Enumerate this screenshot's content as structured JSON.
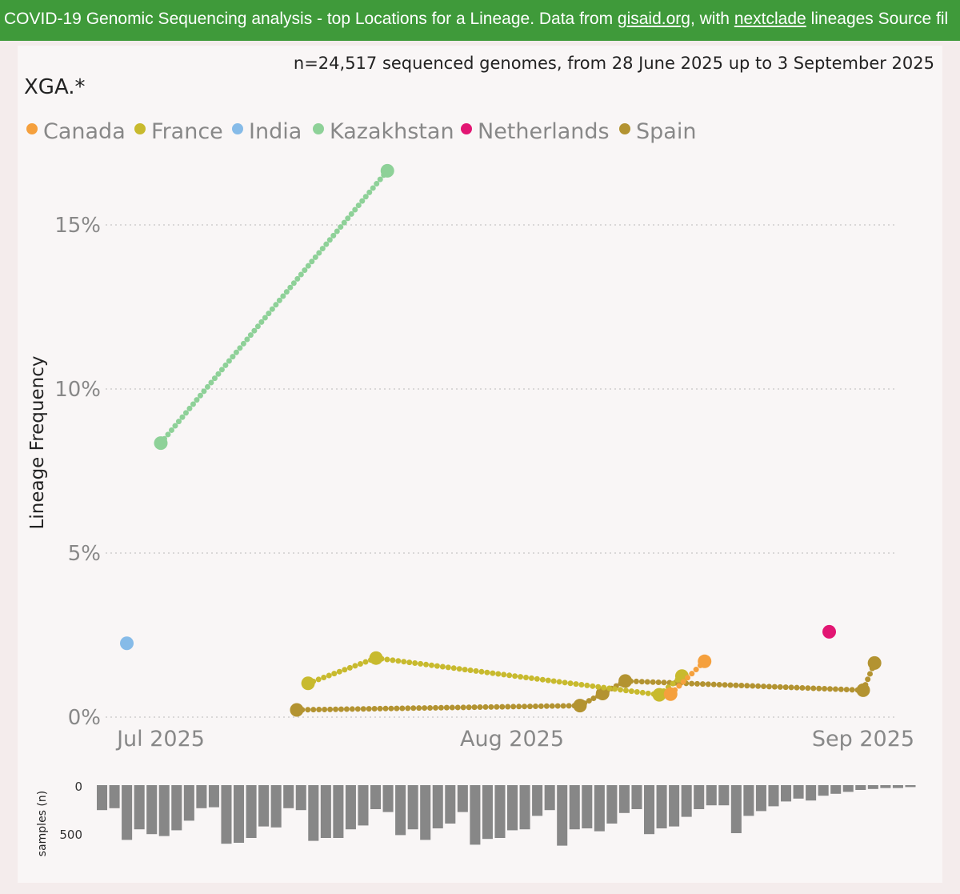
{
  "header": {
    "text_before": "COVID-19 Genomic Sequencing analysis - top Locations for a Lineage. Data from ",
    "link1": "gisaid.org",
    "text_mid": ", with ",
    "link2": "nextclade",
    "text_after": " lineages Source fil"
  },
  "chart_data": {
    "type": "line",
    "title": "XGA.*",
    "subtitle": "n=24,517 sequenced genomes, from 28 June 2025 up to 3 September 2025",
    "ylabel": "Lineage Frequency",
    "xlabel": "",
    "ylim": [
      0,
      17
    ],
    "yticks": [
      0,
      5,
      10,
      15
    ],
    "ytick_labels": [
      "0%",
      "5%",
      "10%",
      "15%"
    ],
    "xlim_day": [
      -3,
      66
    ],
    "xticks_day": [
      3,
      34,
      65
    ],
    "xtick_labels": [
      "Jul 2025",
      "Aug 2025",
      "Sep 2025"
    ],
    "day_axis_note": "day 0 = 28 June 2025",
    "legend_position": "top-left",
    "series": [
      {
        "name": "Canada",
        "color": "#f5a03d",
        "points": [
          {
            "d": 48,
            "v": 0.7
          },
          {
            "d": 51,
            "v": 1.7
          }
        ],
        "big": [
          0,
          1
        ]
      },
      {
        "name": "France",
        "color": "#c8ba2e",
        "points": [
          {
            "d": 16,
            "v": 1.03
          },
          {
            "d": 22,
            "v": 1.8
          },
          {
            "d": 47,
            "v": 0.68
          },
          {
            "d": 49,
            "v": 1.25
          }
        ],
        "big": [
          0,
          1,
          2,
          3
        ]
      },
      {
        "name": "India",
        "color": "#86bbe8",
        "points": [
          {
            "d": 0,
            "v": 2.25
          }
        ],
        "big": [
          0
        ]
      },
      {
        "name": "Kazakhstan",
        "color": "#8ed198",
        "points": [
          {
            "d": 3,
            "v": 8.35
          },
          {
            "d": 23,
            "v": 16.65
          }
        ],
        "big": [
          0,
          1
        ]
      },
      {
        "name": "Netherlands",
        "color": "#e21673",
        "points": [
          {
            "d": 62,
            "v": 2.6
          }
        ],
        "big": [
          0
        ]
      },
      {
        "name": "Spain",
        "color": "#b39331",
        "points": [
          {
            "d": 15,
            "v": 0.22
          },
          {
            "d": 40,
            "v": 0.35
          },
          {
            "d": 42,
            "v": 0.72
          },
          {
            "d": 44,
            "v": 1.1
          },
          {
            "d": 65,
            "v": 0.82
          },
          {
            "d": 66,
            "v": 1.65
          }
        ],
        "big": [
          0,
          1,
          2,
          3,
          4,
          5
        ]
      }
    ],
    "samples": {
      "ylabel": "samples (n)",
      "tick_labels": [
        "0",
        "500"
      ],
      "ymax": 700,
      "values": [
        260,
        240,
        570,
        460,
        510,
        530,
        470,
        370,
        240,
        230,
        610,
        600,
        550,
        430,
        440,
        240,
        260,
        580,
        550,
        550,
        460,
        420,
        250,
        280,
        520,
        460,
        570,
        450,
        400,
        280,
        620,
        560,
        550,
        470,
        460,
        320,
        260,
        630,
        460,
        450,
        480,
        400,
        290,
        250,
        510,
        450,
        430,
        330,
        250,
        210,
        210,
        500,
        320,
        270,
        220,
        170,
        140,
        160,
        110,
        90,
        70,
        50,
        40,
        30,
        30,
        20
      ]
    }
  }
}
